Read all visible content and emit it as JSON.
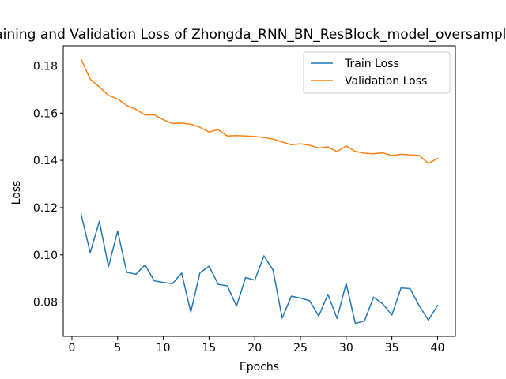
{
  "chart_data": {
    "type": "line",
    "title": "Training and Validation Loss of Zhongda_RNN_BN_ResBlock_model_oversampled",
    "xlabel": "Epochs",
    "ylabel": "Loss",
    "xlim": [
      -0.95,
      41.95
    ],
    "ylim": [
      0.0655,
      0.1885
    ],
    "xticks": [
      0,
      5,
      10,
      15,
      20,
      25,
      30,
      35,
      40
    ],
    "xtick_labels": [
      "0",
      "5",
      "10",
      "15",
      "20",
      "25",
      "30",
      "35",
      "40"
    ],
    "yticks": [
      0.08,
      0.1,
      0.12,
      0.14,
      0.16,
      0.18
    ],
    "ytick_labels": [
      "0.08",
      "0.10",
      "0.12",
      "0.14",
      "0.16",
      "0.18"
    ],
    "grid": false,
    "legend_position": "top-right",
    "x": [
      1,
      2,
      3,
      4,
      5,
      6,
      7,
      8,
      9,
      10,
      11,
      12,
      13,
      14,
      15,
      16,
      17,
      18,
      19,
      20,
      21,
      22,
      23,
      24,
      25,
      26,
      27,
      28,
      29,
      30,
      31,
      32,
      33,
      34,
      35,
      36,
      37,
      38,
      39,
      40
    ],
    "series": [
      {
        "name": "Train Loss",
        "color": "#1f77b4",
        "values": [
          0.1172,
          0.101,
          0.1142,
          0.095,
          0.1101,
          0.0926,
          0.0918,
          0.0958,
          0.089,
          0.0883,
          0.0878,
          0.0923,
          0.0758,
          0.0924,
          0.0952,
          0.0875,
          0.0869,
          0.0783,
          0.0904,
          0.0893,
          0.0996,
          0.0936,
          0.0732,
          0.0825,
          0.0817,
          0.0806,
          0.0741,
          0.0833,
          0.0731,
          0.0879,
          0.071,
          0.072,
          0.0821,
          0.0793,
          0.0745,
          0.086,
          0.0857,
          0.0784,
          0.0724,
          0.0786
        ]
      },
      {
        "name": "Validation Loss",
        "color": "#ff7f0e",
        "values": [
          0.1829,
          0.1743,
          0.1711,
          0.1675,
          0.166,
          0.1632,
          0.1616,
          0.1592,
          0.1593,
          0.1572,
          0.1556,
          0.1558,
          0.1553,
          0.154,
          0.152,
          0.153,
          0.1503,
          0.1505,
          0.1503,
          0.1501,
          0.1497,
          0.149,
          0.1478,
          0.1466,
          0.147,
          0.1464,
          0.1452,
          0.1457,
          0.1437,
          0.1461,
          0.1438,
          0.143,
          0.1428,
          0.1432,
          0.142,
          0.1426,
          0.1423,
          0.1421,
          0.1387,
          0.1408
        ]
      }
    ]
  }
}
